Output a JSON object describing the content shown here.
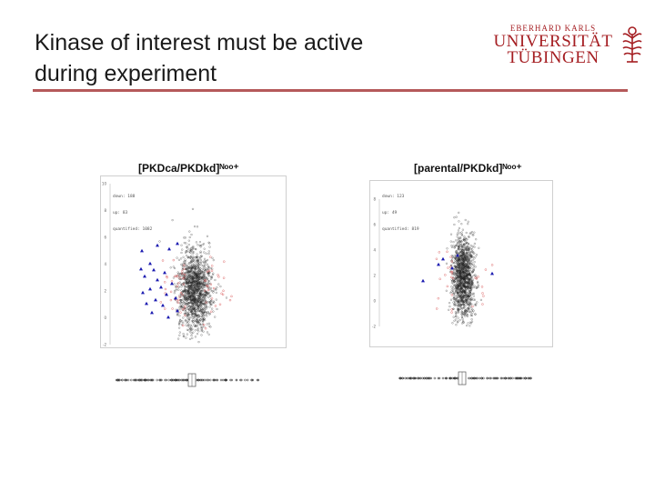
{
  "slide": {
    "title_line1": "Kinase of interest must be active",
    "title_line2": "during experiment"
  },
  "logo": {
    "line1": "EBERHARD KARLS",
    "line2": "UNIVERSITÄT",
    "line3": "TÜBINGEN"
  },
  "colors": {
    "rule": "#b5595a",
    "logo": "#a51e22",
    "points": "#222222",
    "highlight": "#e07070",
    "triangle": "#1a1ab0"
  },
  "plots": [
    {
      "caption": "[PKDca/PKDkd]ᴺᵒᵒ⁺",
      "legend": [
        "down: 188",
        "up: 83",
        "quantified: 1082"
      ],
      "y_ticks": [
        "10",
        "8",
        "6",
        "4",
        "2",
        "0",
        "-2"
      ],
      "x_ticks": [
        "-3",
        "-2",
        "-1",
        "0",
        "1",
        "2",
        "3"
      ]
    },
    {
      "caption": "[parental/PKDkd]ᴺᵒᵒ⁺",
      "legend": [
        "down: 123",
        "up: 49",
        "quantified: 819"
      ],
      "y_ticks": [
        "8",
        "6",
        "4",
        "2",
        "0",
        "-2"
      ],
      "x_ticks": [
        "-3",
        "-4",
        "-2",
        "-1",
        "0",
        "1",
        "2",
        "3",
        "4",
        "3"
      ]
    }
  ]
}
